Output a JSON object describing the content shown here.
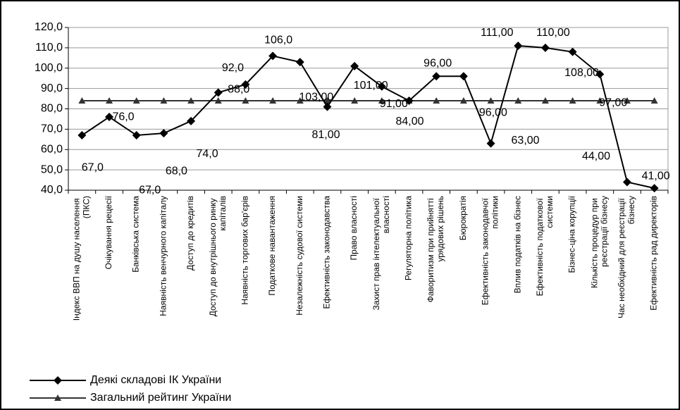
{
  "chart_data": {
    "type": "line",
    "categories": [
      "Індекс ВВП на душу населення (ПКС)",
      "Очікування рецесії",
      "Банківська система",
      "Наявність венчурного капіталу",
      "Доступ до кредитів",
      "Доступ до внутрішнього ринку капіталів",
      "Наявність торгових бар'єрів",
      "Податкове навантаження",
      "Незалежність судової системи",
      "Ефективність законодавства",
      "Право власності",
      "Захист прав інтелектуальної власності",
      "Регуляторна політика",
      "Фаворитизм при прийнятті урядових рішень",
      "Бюрократія",
      "Ефективність законодавчої політики",
      "Вплив податків на бізнес",
      "Ефективність податкової системи",
      "Бізнес-ціна корупції",
      "Кількість процедур при реєстрації бізнесу",
      "Час необхідний для реєстрації бізнесу",
      "Ефективність рад директорів"
    ],
    "series": [
      {
        "name": "Деякі складові ІК України",
        "color": "#000000",
        "marker": "diamond",
        "values": [
          67,
          76,
          67,
          68,
          74,
          88,
          92,
          106,
          103,
          81,
          101,
          91,
          84,
          96,
          96,
          63,
          111,
          110,
          108,
          97,
          44,
          41
        ],
        "value_labels": [
          "67,0",
          "76,0",
          "67,0",
          "68,0",
          "74,0",
          "88,0",
          "92,0",
          "106,0",
          "103,00",
          "81,00",
          "101,00",
          "91,00",
          "84,00",
          "96,00",
          "96,00",
          "63,00",
          "111,00",
          "110,00",
          "108,00",
          "97,00",
          "44,00",
          "41,00"
        ]
      },
      {
        "name": "Загальний рейтинг України",
        "color": "#333333",
        "marker": "triangle",
        "values": [
          84,
          84,
          84,
          84,
          84,
          84,
          84,
          84,
          84,
          84,
          84,
          84,
          84,
          84,
          84,
          84,
          84,
          84,
          84,
          84,
          84,
          84
        ]
      }
    ],
    "ylim": [
      40,
      120
    ],
    "yticks": [
      {
        "value": 40,
        "label": "40,0"
      },
      {
        "value": 50,
        "label": "50,0"
      },
      {
        "value": 60,
        "label": "60,0"
      },
      {
        "value": 70,
        "label": "70,0"
      },
      {
        "value": 80,
        "label": "80,0"
      },
      {
        "value": 90,
        "label": "90,0"
      },
      {
        "value": 100,
        "label": "100,0"
      },
      {
        "value": 110,
        "label": "110,0"
      },
      {
        "value": 120,
        "label": "120,0"
      }
    ],
    "grid": true,
    "legend": "bottom-left"
  }
}
